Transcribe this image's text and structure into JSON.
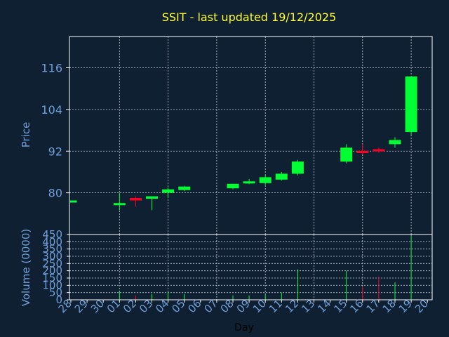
{
  "colors": {
    "background": "#0f2033",
    "panel_border": "#ffffff",
    "grid": "#c8d0d8",
    "title": "#ffff33",
    "axis_text": "#6f9fd8",
    "xlabel_text": "#000000",
    "up": "#00ff33",
    "down": "#ff0022"
  },
  "chart_data": {
    "type": "candlestick",
    "title": "SSIT - last updated 19/12/2025",
    "xlabel": "Day",
    "price_panel": {
      "ylabel": "Price",
      "ylim": [
        68,
        125
      ],
      "yticks": [
        80,
        92,
        104,
        116
      ]
    },
    "volume_panel": {
      "ylabel": "Volume (0000)",
      "ylim": [
        0,
        450
      ],
      "yticks": [
        0,
        50,
        100,
        150,
        200,
        250,
        300,
        350,
        400,
        450
      ],
      "ytick_labels": [
        "0",
        "50",
        "100",
        "150",
        "200",
        "250",
        "300",
        "350",
        "400",
        "450"
      ]
    },
    "x_tick_labels": [
      "28",
      "29",
      "30",
      "01",
      "02",
      "03",
      "04",
      "05",
      "06",
      "07",
      "08",
      "09",
      "10",
      "11",
      "12",
      "13",
      "14",
      "15",
      "16",
      "17",
      "18",
      "19",
      "20"
    ],
    "x_grid_every": 3,
    "candles": [
      {
        "day": "28",
        "o": 77.5,
        "h": 77.5,
        "l": 77.5,
        "c": 77.5,
        "v": 0
      },
      {
        "day": "01",
        "o": 76.6,
        "h": 80,
        "l": 75,
        "c": 76.9,
        "v": 60
      },
      {
        "day": "02",
        "o": 78.5,
        "h": 79,
        "l": 76,
        "c": 77.8,
        "v": 30
      },
      {
        "day": "03",
        "o": 78.3,
        "h": 79,
        "l": 75,
        "c": 79,
        "v": 40
      },
      {
        "day": "04",
        "o": 80,
        "h": 81.5,
        "l": 78.5,
        "c": 81,
        "v": 50
      },
      {
        "day": "05",
        "o": 80.8,
        "h": 82,
        "l": 80.5,
        "c": 81.8,
        "v": 40
      },
      {
        "day": "08",
        "o": 81.3,
        "h": 82.5,
        "l": 81,
        "c": 82.6,
        "v": 30
      },
      {
        "day": "09",
        "o": 82.8,
        "h": 84,
        "l": 82.5,
        "c": 83.2,
        "v": 30
      },
      {
        "day": "10",
        "o": 82.8,
        "h": 85,
        "l": 82.3,
        "c": 84.5,
        "v": 40
      },
      {
        "day": "11",
        "o": 83.8,
        "h": 86,
        "l": 83.5,
        "c": 85.5,
        "v": 50
      },
      {
        "day": "12",
        "o": 85.5,
        "h": 89.5,
        "l": 85,
        "c": 89,
        "v": 210
      },
      {
        "day": "15",
        "o": 89,
        "h": 94,
        "l": 88.5,
        "c": 93,
        "v": 200
      },
      {
        "day": "16",
        "o": 92,
        "h": 94,
        "l": 91,
        "c": 91.5,
        "v": 90
      },
      {
        "day": "17",
        "o": 92.5,
        "h": 93,
        "l": 91.5,
        "c": 92,
        "v": 160
      },
      {
        "day": "18",
        "o": 94,
        "h": 96,
        "l": 93,
        "c": 95.2,
        "v": 120
      },
      {
        "day": "19",
        "o": 97.5,
        "h": 113.5,
        "l": 96.5,
        "c": 113.5,
        "v": 440
      }
    ]
  }
}
